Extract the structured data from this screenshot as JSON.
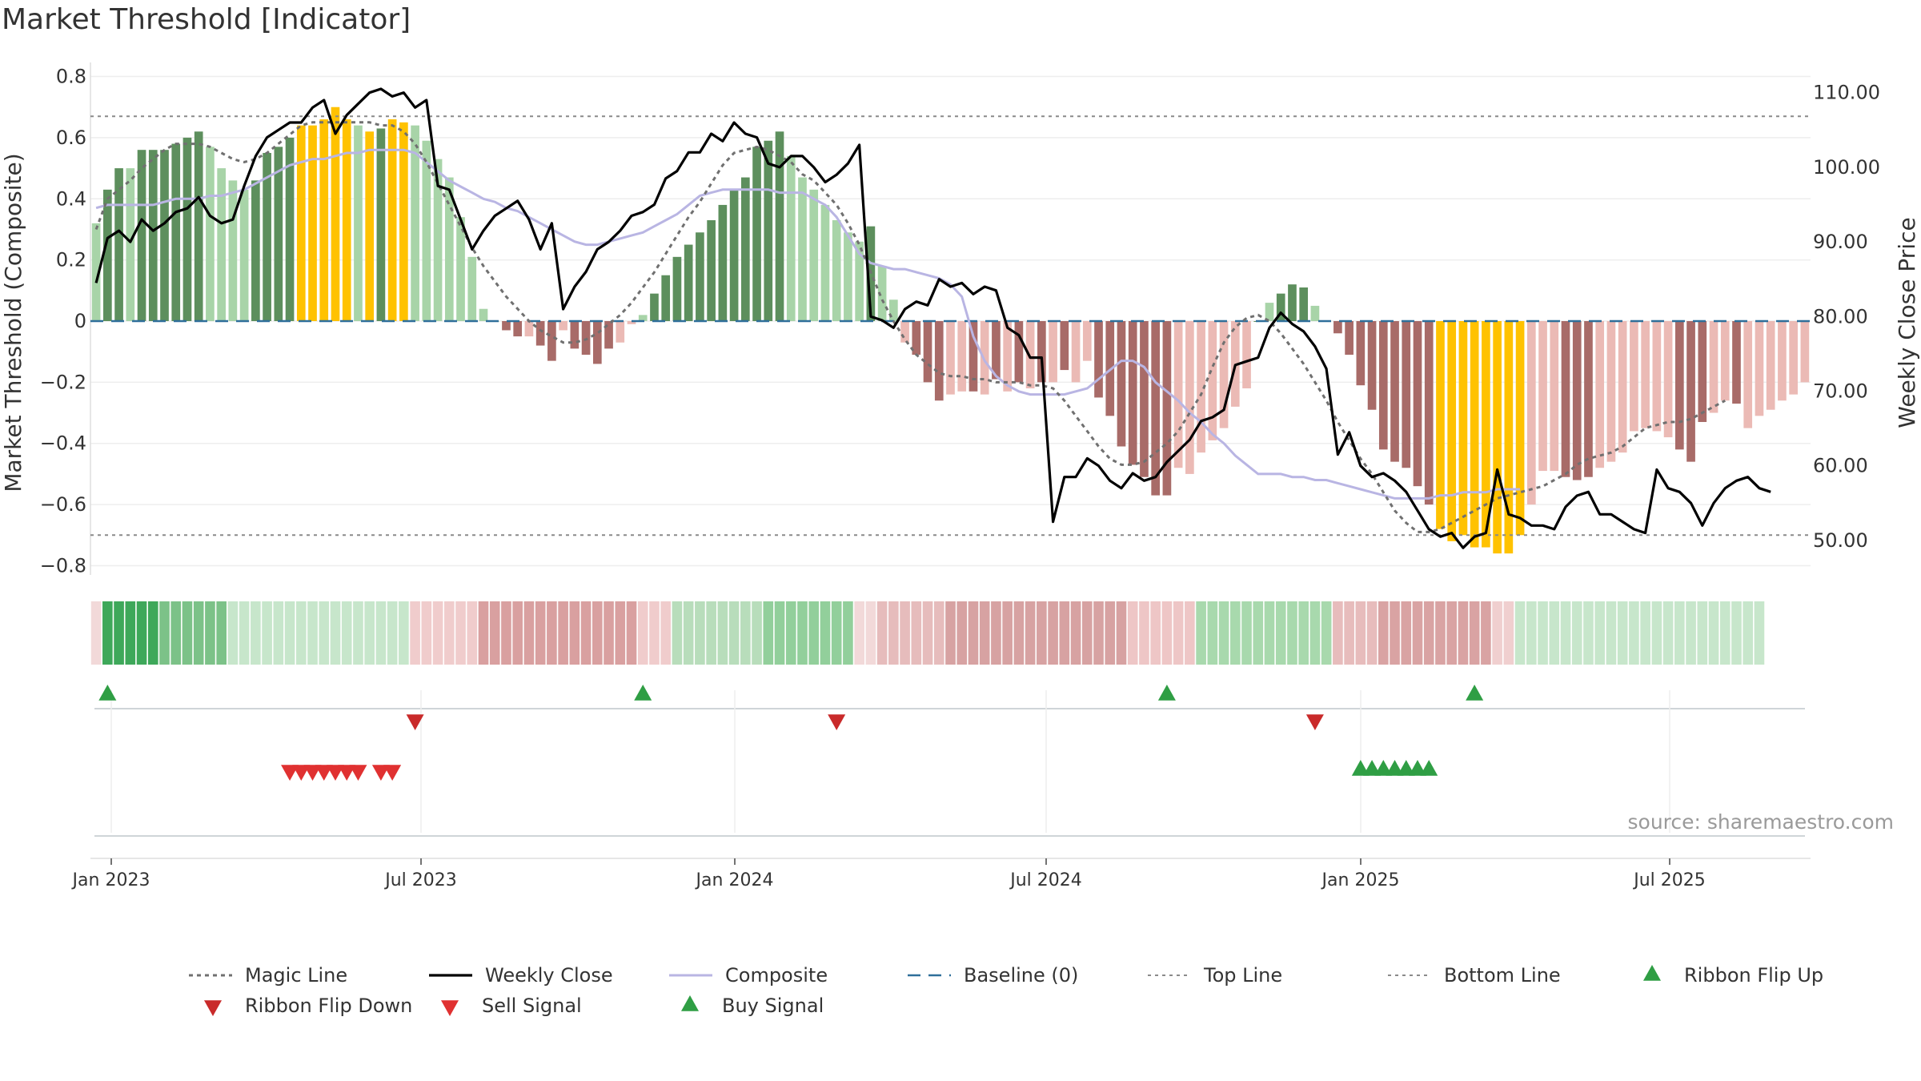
{
  "header": {
    "title": "Market Threshold [Indicator]"
  },
  "source_note": "source: sharemaestro.com",
  "colors": {
    "bar_dark_green": "#5d8f5d",
    "bar_light_green": "#a8d4a8",
    "bar_dark_red": "#a86b68",
    "bar_light_red": "#ebbab5",
    "bar_yellow": "#ffc200",
    "magic_line": "#707070",
    "weekly_close": "#000000",
    "composite_line": "#b9b5e3",
    "baseline": "#2f6f9a",
    "ribbon_up": "#2f9e44",
    "ribbon_down": "#c92a2a",
    "sell_signal": "#e03131",
    "buy_signal": "#2f9e44"
  },
  "chart_data": {
    "type": "bar",
    "title": "Market Threshold [Indicator]",
    "ylabel_left": "Market Threshold (Composite)",
    "ylabel_right": "Weekly Close Price",
    "ylim_left": [
      -0.85,
      0.82
    ],
    "ylim_right": [
      44,
      113
    ],
    "yticks_left": [
      "0.8",
      "0.6",
      "0.4",
      "0.2",
      "0",
      "−0.2",
      "−0.4",
      "−0.6",
      "−0.8"
    ],
    "yticks_right": [
      "110.00",
      "100.00",
      "90.00",
      "80.00",
      "70.00",
      "60.00",
      "50.00"
    ],
    "xticks": [
      "Jan 2023",
      "Jul 2023",
      "Jan 2024",
      "Jul 2024",
      "Jan 2025",
      "Jul 2025"
    ],
    "top_line": 0.67,
    "bottom_line": -0.7,
    "baseline": 0,
    "grid": true,
    "legend_position": "bottom",
    "legend": [
      "Magic Line",
      "Weekly Close",
      "Composite",
      "Baseline (0)",
      "Top Line",
      "Bottom Line",
      "Ribbon Flip Up",
      "Ribbon Flip Down",
      "Sell Signal",
      "Buy Signal"
    ],
    "composite_bars": [
      0.32,
      0.43,
      0.5,
      0.5,
      0.56,
      0.56,
      0.56,
      0.58,
      0.6,
      0.62,
      0.57,
      0.5,
      0.46,
      0.43,
      0.46,
      0.55,
      0.57,
      0.6,
      0.64,
      0.64,
      0.66,
      0.7,
      0.66,
      0.64,
      0.62,
      0.63,
      0.66,
      0.65,
      0.64,
      0.59,
      0.53,
      0.47,
      0.34,
      0.21,
      0.04,
      0.0,
      -0.03,
      -0.05,
      -0.05,
      -0.08,
      -0.13,
      -0.03,
      -0.09,
      -0.11,
      -0.14,
      -0.09,
      -0.07,
      -0.01,
      0.02,
      0.09,
      0.15,
      0.21,
      0.25,
      0.29,
      0.33,
      0.38,
      0.43,
      0.47,
      0.57,
      0.59,
      0.62,
      0.54,
      0.47,
      0.43,
      0.38,
      0.33,
      0.29,
      0.26,
      0.31,
      0.18,
      0.07,
      -0.07,
      -0.11,
      -0.2,
      -0.26,
      -0.24,
      -0.23,
      -0.23,
      -0.24,
      -0.19,
      -0.23,
      -0.2,
      -0.22,
      -0.2,
      -0.2,
      -0.16,
      -0.2,
      -0.13,
      -0.25,
      -0.31,
      -0.41,
      -0.47,
      -0.51,
      -0.57,
      -0.57,
      -0.48,
      -0.5,
      -0.43,
      -0.39,
      -0.35,
      -0.28,
      -0.22,
      0.0,
      0.06,
      0.09,
      0.12,
      0.11,
      0.05,
      0.0,
      -0.04,
      -0.11,
      -0.21,
      -0.29,
      -0.42,
      -0.46,
      -0.48,
      -0.54,
      -0.6,
      -0.68,
      -0.72,
      -0.7,
      -0.74,
      -0.74,
      -0.76,
      -0.76,
      -0.7,
      -0.6,
      -0.49,
      -0.49,
      -0.51,
      -0.52,
      -0.51,
      -0.48,
      -0.46,
      -0.43,
      -0.36,
      -0.35,
      -0.36,
      -0.38,
      -0.42,
      -0.46,
      -0.33,
      -0.3,
      -0.26,
      -0.27,
      -0.35,
      -0.31,
      -0.29,
      -0.26,
      -0.24,
      -0.2
    ],
    "bar_color_keys": [
      "lg",
      "dg",
      "dg",
      "lg",
      "dg",
      "dg",
      "dg",
      "dg",
      "dg",
      "dg",
      "lg",
      "lg",
      "lg",
      "lg",
      "dg",
      "dg",
      "dg",
      "dg",
      "y",
      "y",
      "y",
      "y",
      "y",
      "lg",
      "y",
      "dg",
      "y",
      "y",
      "lg",
      "lg",
      "lg",
      "lg",
      "lg",
      "lg",
      "lg",
      "lg",
      "dr",
      "dr",
      "lr",
      "dr",
      "dr",
      "lr",
      "dr",
      "dr",
      "dr",
      "dr",
      "lr",
      "lr",
      "lg",
      "dg",
      "dg",
      "dg",
      "dg",
      "dg",
      "dg",
      "dg",
      "dg",
      "dg",
      "dg",
      "dg",
      "dg",
      "lg",
      "lg",
      "lg",
      "lg",
      "lg",
      "lg",
      "lg",
      "dg",
      "lg",
      "lg",
      "lr",
      "dr",
      "dr",
      "dr",
      "lr",
      "lr",
      "dr",
      "lr",
      "dr",
      "lr",
      "dr",
      "lr",
      "dr",
      "lr",
      "dr",
      "lr",
      "lr",
      "dr",
      "dr",
      "dr",
      "dr",
      "dr",
      "dr",
      "dr",
      "lr",
      "lr",
      "lr",
      "lr",
      "lr",
      "lr",
      "lr",
      "dg",
      "lg",
      "dg",
      "dg",
      "dg",
      "lg",
      "lr",
      "dr",
      "dr",
      "dr",
      "dr",
      "dr",
      "dr",
      "dr",
      "dr",
      "dr",
      "y",
      "y",
      "y",
      "y",
      "y",
      "y",
      "y",
      "y",
      "lr",
      "lr",
      "lr",
      "dr",
      "dr",
      "dr",
      "lr",
      "lr",
      "lr",
      "lr",
      "lr",
      "lr",
      "lr",
      "dr",
      "dr",
      "dr",
      "lr",
      "lr",
      "dr",
      "lr",
      "lr",
      "lr",
      "lr",
      "lr",
      "lr",
      "lr"
    ],
    "weekly_close": [
      84.5,
      90.5,
      91.5,
      90.0,
      93.0,
      91.5,
      92.5,
      94.0,
      94.5,
      96.0,
      93.5,
      92.5,
      93.0,
      97.5,
      101.5,
      104.0,
      105.0,
      106.0,
      106.0,
      108.0,
      109.0,
      104.5,
      107.0,
      108.5,
      110.0,
      110.5,
      109.5,
      110.0,
      108.0,
      109.0,
      97.5,
      97.0,
      93.0,
      89.0,
      91.5,
      93.5,
      94.5,
      95.5,
      93.0,
      89.0,
      92.5,
      81.0,
      84.0,
      86.0,
      89.0,
      90.0,
      91.5,
      93.5,
      94.0,
      95.0,
      98.5,
      99.5,
      102.0,
      102.0,
      104.5,
      103.5,
      106.0,
      104.5,
      104.0,
      100.5,
      100.0,
      101.5,
      101.5,
      100.0,
      98.0,
      99.0,
      100.5,
      103.0,
      80.0,
      79.5,
      78.5,
      81.0,
      82.0,
      81.5,
      85.0,
      84.0,
      84.5,
      83.0,
      84.0,
      83.5,
      78.5,
      77.5,
      74.5,
      74.5,
      52.5,
      58.5,
      58.5,
      61.0,
      60.0,
      58.0,
      57.0,
      59.0,
      58.0,
      58.5,
      60.5,
      62.0,
      63.5,
      66.0,
      66.5,
      67.5,
      73.5,
      74.0,
      74.5,
      78.5,
      80.5,
      79.0,
      78.0,
      76.0,
      73.0,
      61.5,
      64.5,
      60.0,
      58.5,
      59.0,
      58.0,
      56.5,
      54.0,
      51.5,
      50.5,
      51.0,
      49.0,
      50.5,
      51.0,
      59.5,
      53.5,
      53.0,
      52.0,
      52.0,
      51.5,
      54.5,
      56.0,
      56.5,
      53.5,
      53.5,
      52.5,
      51.5,
      51.0,
      59.5,
      57.0,
      56.5,
      55.0,
      52.0,
      55.0,
      57.0,
      58.0,
      58.5,
      57.0,
      56.5
    ],
    "magic_line": [
      0.3,
      0.4,
      0.43,
      0.46,
      0.5,
      0.53,
      0.56,
      0.58,
      0.58,
      0.58,
      0.57,
      0.55,
      0.53,
      0.52,
      0.53,
      0.55,
      0.58,
      0.61,
      0.64,
      0.65,
      0.65,
      0.65,
      0.65,
      0.65,
      0.65,
      0.64,
      0.64,
      0.62,
      0.58,
      0.52,
      0.45,
      0.38,
      0.31,
      0.24,
      0.18,
      0.13,
      0.08,
      0.04,
      0.0,
      -0.03,
      -0.05,
      -0.07,
      -0.07,
      -0.06,
      -0.04,
      -0.01,
      0.02,
      0.06,
      0.11,
      0.16,
      0.22,
      0.28,
      0.34,
      0.39,
      0.45,
      0.51,
      0.55,
      0.56,
      0.57,
      0.56,
      0.54,
      0.52,
      0.48,
      0.46,
      0.42,
      0.38,
      0.32,
      0.25,
      0.16,
      0.07,
      0.0,
      -0.06,
      -0.11,
      -0.14,
      -0.17,
      -0.18,
      -0.18,
      -0.19,
      -0.19,
      -0.2,
      -0.2,
      -0.2,
      -0.21,
      -0.21,
      -0.22,
      -0.26,
      -0.31,
      -0.36,
      -0.41,
      -0.45,
      -0.47,
      -0.47,
      -0.46,
      -0.43,
      -0.4,
      -0.36,
      -0.3,
      -0.24,
      -0.15,
      -0.07,
      -0.02,
      0.01,
      0.02,
      0.0,
      -0.04,
      -0.09,
      -0.14,
      -0.2,
      -0.26,
      -0.33,
      -0.39,
      -0.45,
      -0.5,
      -0.56,
      -0.62,
      -0.66,
      -0.69,
      -0.69,
      -0.68,
      -0.66,
      -0.64,
      -0.62,
      -0.6,
      -0.58,
      -0.57,
      -0.56,
      -0.55,
      -0.54,
      -0.52,
      -0.5,
      -0.47,
      -0.45,
      -0.44,
      -0.43,
      -0.41,
      -0.38,
      -0.35,
      -0.34,
      -0.33,
      -0.33,
      -0.32,
      -0.3,
      -0.28,
      -0.26
    ],
    "composite_line": [
      0.37,
      0.38,
      0.38,
      0.38,
      0.38,
      0.38,
      0.39,
      0.4,
      0.4,
      0.4,
      0.41,
      0.41,
      0.42,
      0.43,
      0.45,
      0.47,
      0.49,
      0.51,
      0.52,
      0.53,
      0.53,
      0.54,
      0.55,
      0.55,
      0.56,
      0.56,
      0.56,
      0.56,
      0.55,
      0.52,
      0.49,
      0.46,
      0.44,
      0.42,
      0.4,
      0.39,
      0.37,
      0.36,
      0.34,
      0.32,
      0.3,
      0.28,
      0.26,
      0.25,
      0.25,
      0.26,
      0.27,
      0.28,
      0.29,
      0.31,
      0.33,
      0.35,
      0.38,
      0.41,
      0.42,
      0.43,
      0.43,
      0.43,
      0.43,
      0.43,
      0.42,
      0.42,
      0.42,
      0.4,
      0.38,
      0.34,
      0.28,
      0.22,
      0.19,
      0.18,
      0.17,
      0.17,
      0.16,
      0.15,
      0.14,
      0.12,
      0.08,
      -0.05,
      -0.13,
      -0.18,
      -0.21,
      -0.23,
      -0.24,
      -0.24,
      -0.24,
      -0.24,
      -0.23,
      -0.22,
      -0.19,
      -0.16,
      -0.13,
      -0.13,
      -0.15,
      -0.2,
      -0.23,
      -0.26,
      -0.3,
      -0.33,
      -0.37,
      -0.4,
      -0.44,
      -0.47,
      -0.5,
      -0.5,
      -0.5,
      -0.51,
      -0.51,
      -0.52,
      -0.52,
      -0.53,
      -0.54,
      -0.55,
      -0.56,
      -0.57,
      -0.58,
      -0.58,
      -0.58,
      -0.58,
      -0.57,
      -0.57,
      -0.56,
      -0.56,
      -0.56,
      -0.55,
      -0.55,
      -0.55
    ]
  },
  "ribbon": {
    "segments": [
      {
        "color": "#f2d9d9",
        "count": 1
      },
      {
        "color": "#3ea85a",
        "count": 5
      },
      {
        "color": "#7cc288",
        "count": 6
      },
      {
        "color": "#c7e6cb",
        "count": 16
      },
      {
        "color": "#f0cccc",
        "count": 6
      },
      {
        "color": "#d9a0a0",
        "count": 14
      },
      {
        "color": "#f0cccc",
        "count": 3
      },
      {
        "color": "#b8ddbb",
        "count": 8
      },
      {
        "color": "#92cf9b",
        "count": 8
      },
      {
        "color": "#f2d9d9",
        "count": 2
      },
      {
        "color": "#e6bcbc",
        "count": 6
      },
      {
        "color": "#d7a2a2",
        "count": 16
      },
      {
        "color": "#eec6c6",
        "count": 6
      },
      {
        "color": "#a8d9ad",
        "count": 12
      },
      {
        "color": "#e7bcbc",
        "count": 4
      },
      {
        "color": "#d9a3a3",
        "count": 10
      },
      {
        "color": "#f0cfcf",
        "count": 2
      },
      {
        "color": "#c7e6cb",
        "count": 22
      }
    ]
  },
  "markers": {
    "ribbon_up_weeks": [
      1,
      48,
      94,
      121
    ],
    "ribbon_down_weeks": [
      28,
      65,
      107
    ],
    "sell_weeks": [
      17,
      18,
      19,
      20,
      21,
      22,
      23,
      25,
      26
    ],
    "buy_weeks": [
      111,
      112,
      113,
      114,
      115,
      116,
      117
    ]
  }
}
